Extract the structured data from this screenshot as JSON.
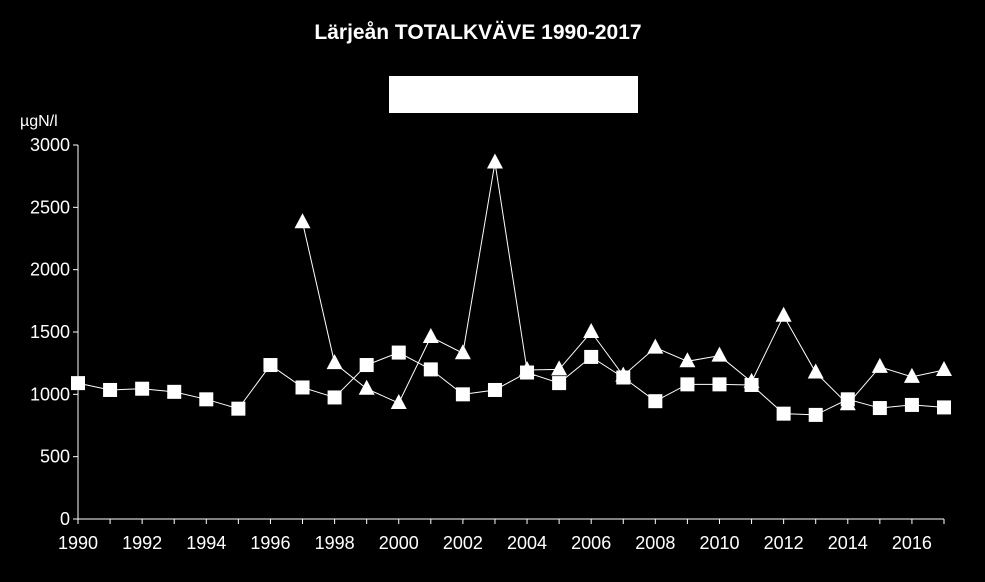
{
  "chart_data": {
    "type": "line",
    "title": "Lärjeån TOTALKVÄVE 1990-2017",
    "ylabel": "µgN/l",
    "xlabel": "",
    "xlim": [
      1990,
      2017
    ],
    "ylim": [
      0,
      3000
    ],
    "y_ticks": [
      0,
      500,
      1000,
      1500,
      2000,
      2500,
      3000
    ],
    "x_ticks": [
      1990,
      1992,
      1994,
      1996,
      1998,
      2000,
      2002,
      2004,
      2006,
      2008,
      2010,
      2012,
      2014,
      2016
    ],
    "grid": false,
    "legend": "top-center",
    "colors": {
      "background": "#000000",
      "foreground": "#ffffff"
    },
    "series": [
      {
        "marker": "square",
        "x": [
          1990,
          1991,
          1992,
          1993,
          1994,
          1995,
          1996,
          1997,
          1998,
          1999,
          2000,
          2001,
          2002,
          2003,
          2004,
          2005,
          2006,
          2007,
          2008,
          2009,
          2010,
          2011,
          2012,
          2013,
          2014,
          2015,
          2016,
          2017
        ],
        "values": [
          1090,
          1035,
          1045,
          1020,
          960,
          885,
          1235,
          1055,
          975,
          1235,
          1335,
          1200,
          1000,
          1035,
          1175,
          1090,
          1300,
          1135,
          945,
          1080,
          1080,
          1075,
          845,
          835,
          960,
          890,
          915,
          895
        ]
      },
      {
        "marker": "triangle",
        "x": [
          1997,
          1998,
          1999,
          2000,
          2001,
          2002,
          2003,
          2004,
          2005,
          2006,
          2007,
          2008,
          2009,
          2010,
          2011,
          2012,
          2013,
          2014,
          2015,
          2016,
          2017
        ],
        "values": [
          2380,
          1250,
          1045,
          930,
          1460,
          1330,
          2860,
          1195,
          1200,
          1500,
          1150,
          1375,
          1265,
          1310,
          1100,
          1630,
          1175,
          920,
          1220,
          1140,
          1195
        ]
      }
    ]
  }
}
